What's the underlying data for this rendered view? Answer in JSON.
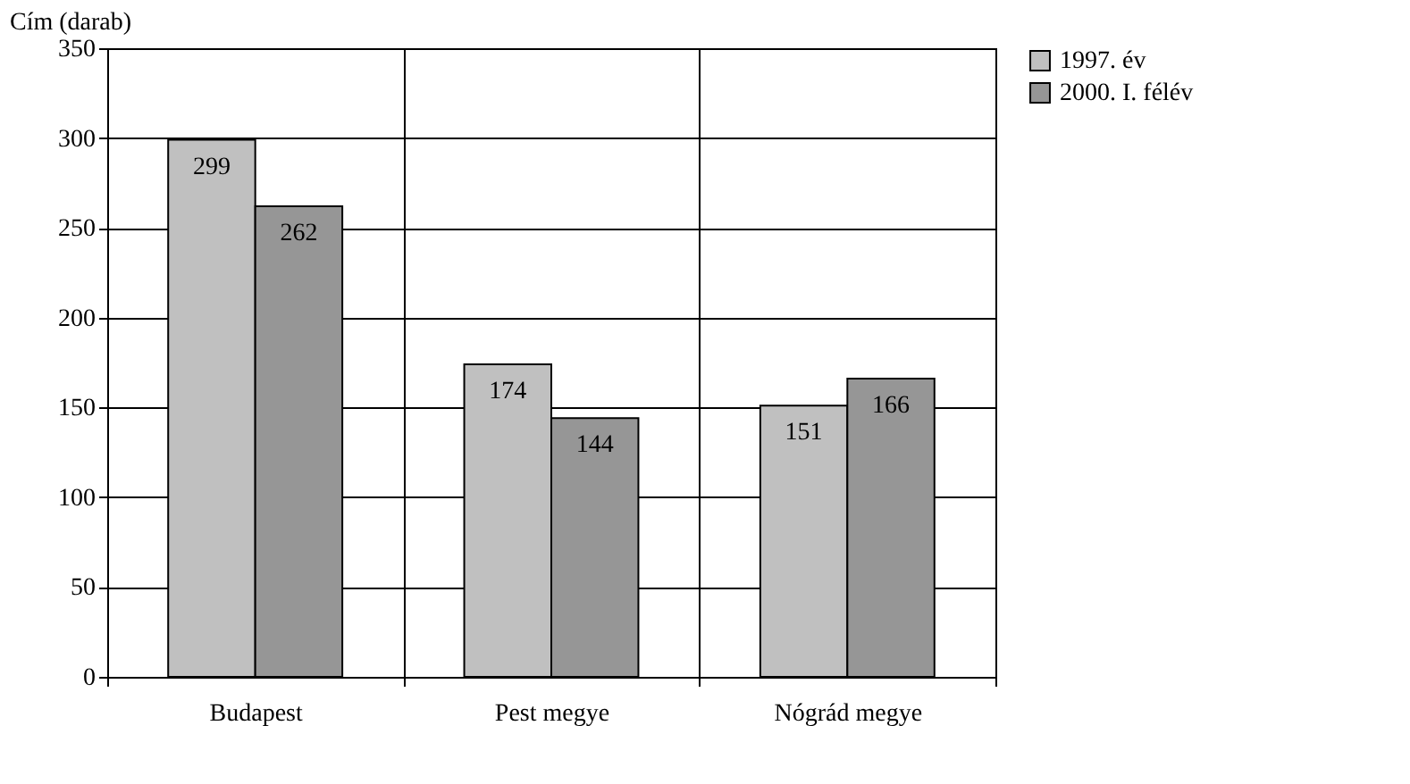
{
  "chart_data": {
    "type": "bar",
    "ylabel": "Cím (darab)",
    "categories": [
      "Budapest",
      "Pest megye",
      "Nógrád megye"
    ],
    "series": [
      {
        "name": "1997. év",
        "color": "#c0c0c0",
        "values": [
          299,
          174,
          151
        ]
      },
      {
        "name": "2000. I. félév",
        "color": "#969696",
        "values": [
          262,
          144,
          166
        ]
      }
    ],
    "ylim": [
      0,
      350
    ],
    "yticks": [
      0,
      50,
      100,
      150,
      200,
      250,
      300,
      350
    ],
    "grid": true,
    "legend": "right",
    "data_labels": true
  }
}
